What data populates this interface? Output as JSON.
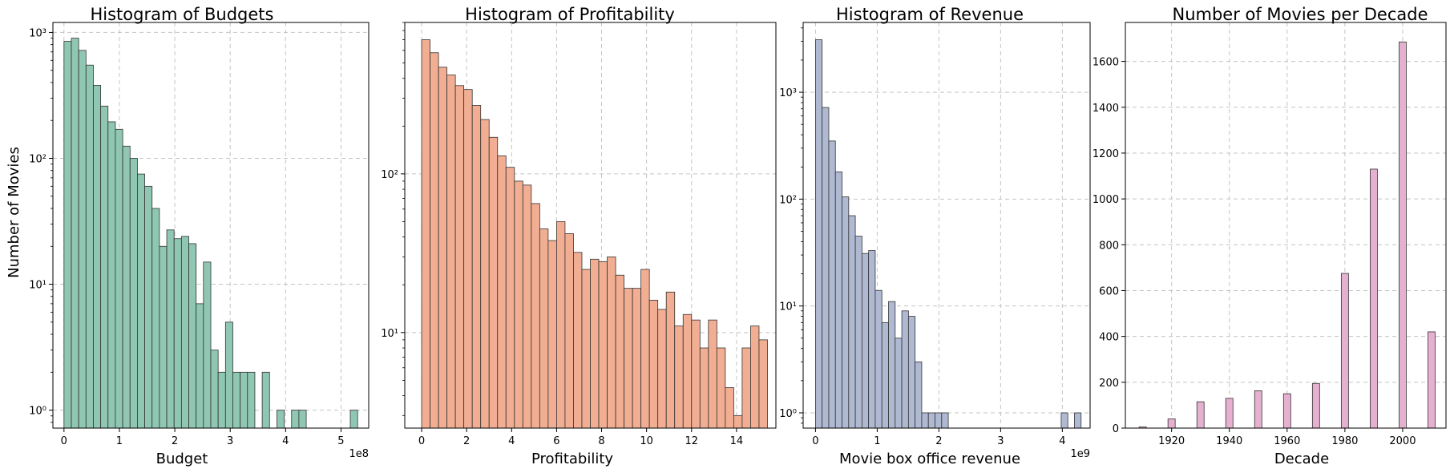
{
  "figure": {
    "ylabel_shared": "Number of Movies"
  },
  "chart_data": [
    {
      "type": "bar",
      "title": "Histogram of Budgets",
      "xlabel": "Budget",
      "ylabel": "Number of Movies",
      "color": "#8fc7b2",
      "yscale": "log",
      "grid": true,
      "xlim": [
        -0.2,
        5.5
      ],
      "ylim": [
        0.72,
        1200
      ],
      "x_offset_label": "1e8",
      "xticks": [
        0,
        1,
        2,
        3,
        4,
        5
      ],
      "yticks": [
        1,
        10,
        100,
        1000
      ],
      "ytick_labels": [
        "10^0",
        "10^1",
        "10^2",
        "10^3"
      ],
      "bin_width": 0.1325,
      "bin_start": 0,
      "values": [
        850,
        900,
        720,
        550,
        380,
        260,
        195,
        170,
        125,
        100,
        75,
        60,
        40,
        20,
        27,
        23,
        24,
        21,
        7,
        15,
        3,
        2,
        5,
        2,
        2,
        2,
        0,
        2,
        0,
        1,
        0,
        1,
        1,
        0,
        0,
        0,
        0,
        0,
        0,
        1
      ]
    },
    {
      "type": "bar",
      "title": "Histogram of Profitability",
      "xlabel": "Profitability",
      "ylabel": "",
      "color": "#f2ae92",
      "yscale": "log",
      "grid": true,
      "xlim": [
        -0.75,
        15.75
      ],
      "ylim": [
        2.5,
        900
      ],
      "xticks": [
        0,
        2,
        4,
        6,
        8,
        10,
        12,
        14
      ],
      "yticks": [
        10,
        100
      ],
      "ytick_labels": [
        "10^1",
        "10^2"
      ],
      "bin_width": 0.375,
      "bin_start": 0,
      "values": [
        700,
        580,
        470,
        420,
        360,
        340,
        270,
        220,
        170,
        130,
        110,
        90,
        85,
        65,
        45,
        38,
        50,
        42,
        32,
        25,
        29,
        28,
        30,
        23,
        19,
        19,
        25,
        16,
        14,
        18,
        11,
        13,
        12,
        8,
        12,
        8,
        4.5,
        3,
        8,
        11,
        9
      ]
    },
    {
      "type": "bar",
      "title": "Histogram of Revenue",
      "xlabel": "Movie box office revenue",
      "ylabel": "",
      "color": "#afb9d1",
      "yscale": "log",
      "grid": true,
      "xlim": [
        -0.2,
        4.45
      ],
      "ylim": [
        0.72,
        4500
      ],
      "x_offset_label": "1e9",
      "xticks": [
        0,
        1,
        2,
        3,
        4
      ],
      "yticks": [
        1,
        10,
        100,
        1000
      ],
      "ytick_labels": [
        "10^0",
        "10^1",
        "10^2",
        "10^3"
      ],
      "bin_width": 0.1076,
      "bin_start": 0,
      "values": [
        3100,
        720,
        350,
        180,
        105,
        70,
        45,
        31,
        33,
        14,
        7,
        11,
        5,
        9,
        8,
        3,
        1,
        1,
        1,
        1,
        0,
        0,
        0,
        0,
        0,
        0,
        0,
        0,
        0,
        0,
        0,
        0,
        0,
        0,
        0,
        0,
        0,
        1,
        0,
        1
      ]
    },
    {
      "type": "bar",
      "title": "Number of Movies per Decade",
      "xlabel": "Decade",
      "ylabel": "",
      "color": "#e6b0d0",
      "yscale": "linear",
      "grid": true,
      "xlim": [
        1904,
        2015
      ],
      "ylim": [
        0,
        1770
      ],
      "xticks": [
        1920,
        1940,
        1960,
        1980,
        2000
      ],
      "yticks": [
        0,
        200,
        400,
        600,
        800,
        1000,
        1200,
        1400,
        1600
      ],
      "ytick_labels": [
        "0",
        "200",
        "400",
        "600",
        "800",
        "1000",
        "1200",
        "1400",
        "1600"
      ],
      "bar_width": 2.5,
      "x": [
        1910,
        1920,
        1930,
        1940,
        1950,
        1960,
        1970,
        1980,
        1990,
        2000,
        2010
      ],
      "values": [
        5,
        40,
        115,
        130,
        163,
        150,
        195,
        675,
        1130,
        1685,
        420
      ]
    }
  ]
}
